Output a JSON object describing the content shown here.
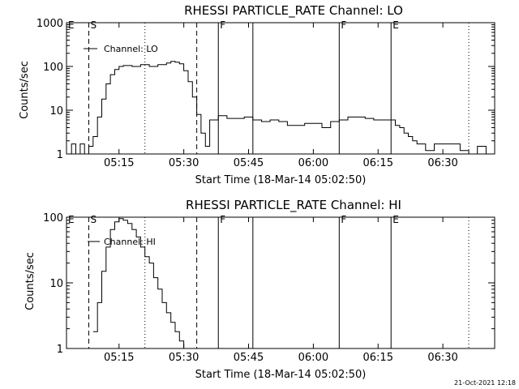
{
  "footer_date": "21-Oct-2021 12:18",
  "chart_data": [
    {
      "type": "line",
      "title": "RHESSI PARTICLE_RATE Channel: LO",
      "xlabel": "Start Time (18-Mar-14 05:02:50)",
      "ylabel": "Counts/sec",
      "legend": "Channel: LO",
      "legend_position": "top-left",
      "yscale": "log",
      "xlim": [
        "05:02:50",
        "06:42:00"
      ],
      "ylim": [
        1,
        1000
      ],
      "x_ticks": [
        "05:15",
        "05:30",
        "05:45",
        "06:00",
        "06:15",
        "06:30"
      ],
      "y_ticks": [
        "1",
        "10",
        "100",
        "1000"
      ],
      "markers": [
        {
          "time": "05:08:00",
          "label": "E",
          "style": "edge"
        },
        {
          "time": "05:08:00",
          "label": "S",
          "style": "dashed"
        },
        {
          "time": "05:21:00",
          "label": "",
          "style": "dotted"
        },
        {
          "time": "05:33:00",
          "label": "",
          "style": "dashed"
        },
        {
          "time": "05:38:00",
          "label": "F",
          "style": "solid"
        },
        {
          "time": "05:46:00",
          "label": "",
          "style": "solid"
        },
        {
          "time": "06:06:00",
          "label": "F",
          "style": "solid"
        },
        {
          "time": "06:18:00",
          "label": "E",
          "style": "solid"
        },
        {
          "time": "06:36:00",
          "label": "",
          "style": "dotted"
        }
      ],
      "series": [
        {
          "name": "Channel: LO",
          "x": [
            "05:03:00",
            "05:04:00",
            "05:05:00",
            "05:06:00",
            "05:07:00",
            "05:08:00",
            "05:09:00",
            "05:10:00",
            "05:11:00",
            "05:12:00",
            "05:13:00",
            "05:14:00",
            "05:15:00",
            "05:16:00",
            "05:18:00",
            "05:20:00",
            "05:22:00",
            "05:24:00",
            "05:26:00",
            "05:27:00",
            "05:28:00",
            "05:29:00",
            "05:30:00",
            "05:31:00",
            "05:32:00",
            "05:33:00",
            "05:34:00",
            "05:35:00",
            "05:36:00",
            "05:38:00",
            "05:40:00",
            "05:42:00",
            "05:44:00",
            "05:46:00",
            "05:48:00",
            "05:50:00",
            "05:52:00",
            "05:54:00",
            "05:56:00",
            "05:58:00",
            "06:00:00",
            "06:02:00",
            "06:04:00",
            "06:06:00",
            "06:08:00",
            "06:10:00",
            "06:12:00",
            "06:14:00",
            "06:16:00",
            "06:18:00",
            "06:19:00",
            "06:20:00",
            "06:21:00",
            "06:22:00",
            "06:23:00",
            "06:24:00",
            "06:26:00",
            "06:28:00",
            "06:30:00",
            "06:32:00",
            "06:34:00",
            "06:36:00",
            "06:38:00",
            "06:40:00",
            "06:42:00"
          ],
          "values": [
            1,
            1.7,
            1,
            1.7,
            1,
            1.5,
            2.5,
            7,
            18,
            40,
            65,
            85,
            100,
            105,
            100,
            110,
            100,
            110,
            120,
            130,
            125,
            115,
            80,
            45,
            20,
            8,
            3,
            1.5,
            6,
            7.5,
            6.5,
            6.5,
            7,
            6,
            5.5,
            6,
            5.5,
            4.5,
            4.5,
            5,
            5,
            4,
            5.5,
            6,
            7,
            7,
            6.5,
            6,
            6,
            6,
            4.5,
            4,
            3,
            2.5,
            2,
            1.7,
            1.2,
            1.7,
            1.7,
            1.7,
            1.2,
            1,
            1.5,
            1,
            1
          ]
        }
      ]
    },
    {
      "type": "line",
      "title": "RHESSI PARTICLE_RATE Channel: HI",
      "xlabel": "Start Time (18-Mar-14 05:02:50)",
      "ylabel": "Counts/sec",
      "legend": "Channel: HI",
      "legend_position": "top-left",
      "yscale": "log",
      "xlim": [
        "05:02:50",
        "06:42:00"
      ],
      "ylim": [
        1,
        100
      ],
      "x_ticks": [
        "05:15",
        "05:30",
        "05:45",
        "06:00",
        "06:15",
        "06:30"
      ],
      "y_ticks": [
        "1",
        "10",
        "100"
      ],
      "markers": [
        {
          "time": "05:08:00",
          "label": "E",
          "style": "edge"
        },
        {
          "time": "05:08:00",
          "label": "S",
          "style": "dashed"
        },
        {
          "time": "05:21:00",
          "label": "",
          "style": "dotted"
        },
        {
          "time": "05:33:00",
          "label": "",
          "style": "dashed"
        },
        {
          "time": "05:38:00",
          "label": "F",
          "style": "solid"
        },
        {
          "time": "05:46:00",
          "label": "",
          "style": "solid"
        },
        {
          "time": "06:06:00",
          "label": "F",
          "style": "solid"
        },
        {
          "time": "06:18:00",
          "label": "E",
          "style": "solid"
        },
        {
          "time": "06:36:00",
          "label": "",
          "style": "dotted"
        }
      ],
      "series": [
        {
          "name": "Channel: HI",
          "x": [
            "05:09:00",
            "05:10:00",
            "05:11:00",
            "05:12:00",
            "05:13:00",
            "05:14:00",
            "05:15:00",
            "05:16:00",
            "05:17:00",
            "05:18:00",
            "05:19:00",
            "05:20:00",
            "05:21:00",
            "05:22:00",
            "05:23:00",
            "05:24:00",
            "05:25:00",
            "05:26:00",
            "05:27:00",
            "05:28:00",
            "05:29:00",
            "05:30:00"
          ],
          "values": [
            1.8,
            5,
            15,
            35,
            65,
            85,
            95,
            90,
            80,
            65,
            50,
            35,
            25,
            20,
            12,
            8,
            5,
            3.5,
            2.5,
            1.8,
            1.3,
            1
          ]
        }
      ]
    }
  ]
}
